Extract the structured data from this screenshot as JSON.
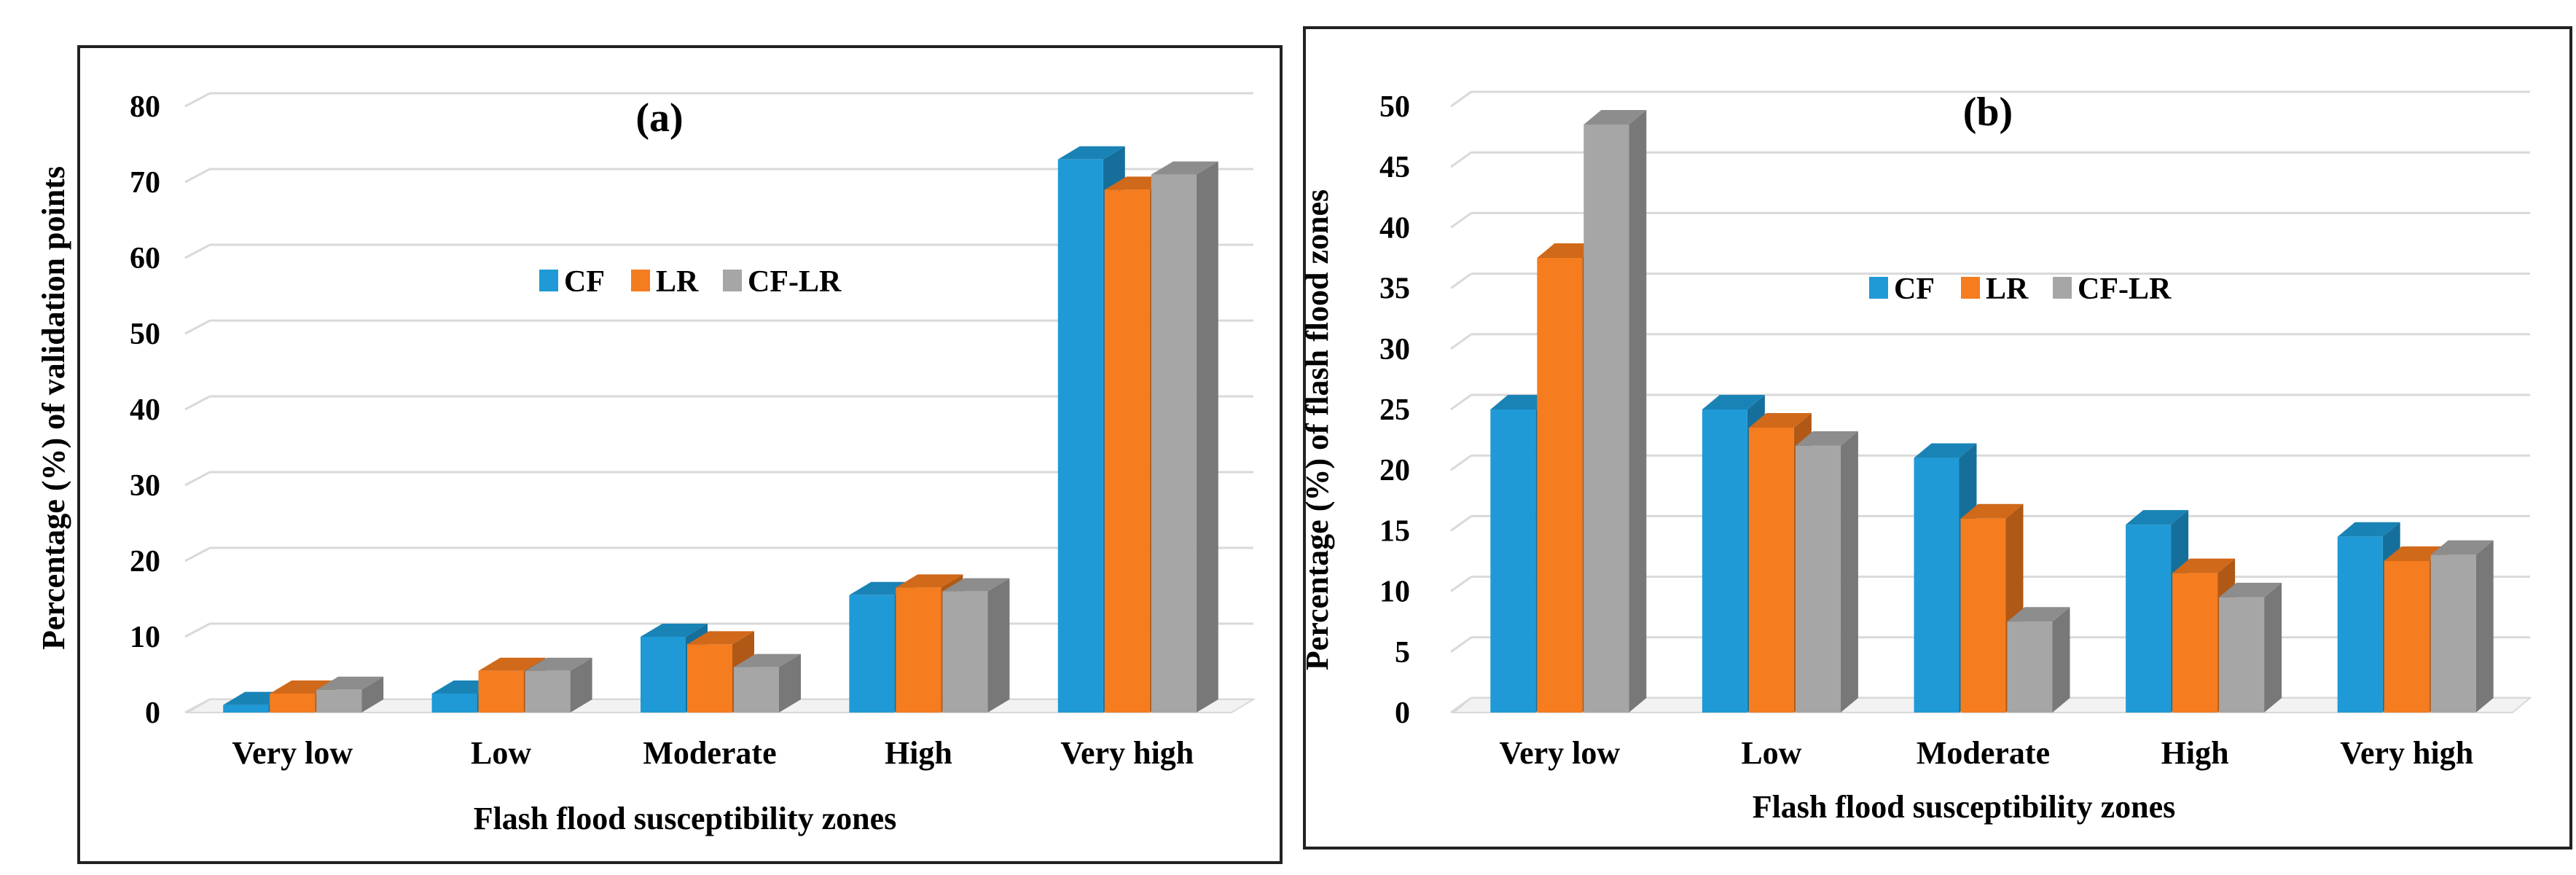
{
  "chart_data": [
    {
      "type": "bar",
      "panel_label": "(a)",
      "title": "(a)",
      "categories": [
        "Very low",
        "Low",
        "Moderate",
        "High",
        "Very high"
      ],
      "series": [
        {
          "name": "CF",
          "values": [
            1,
            2.5,
            10,
            15.5,
            73
          ]
        },
        {
          "name": "LR",
          "values": [
            2.5,
            5.5,
            9,
            16.5,
            69
          ]
        },
        {
          "name": "CF-LR",
          "values": [
            3,
            5.5,
            6,
            16,
            71
          ]
        }
      ],
      "xlabel": "Flash flood susceptibility zones",
      "ylabel": "Percentage (%) of validation points",
      "ylim": [
        0,
        80
      ],
      "yticks": [
        "0",
        "10",
        "20",
        "30",
        "40",
        "50",
        "60",
        "70",
        "80"
      ],
      "grid": true,
      "legend": "center-right"
    },
    {
      "type": "bar",
      "panel_label": "(b)",
      "title": "(b)",
      "categories": [
        "Very low",
        "Low",
        "Moderate",
        "High",
        "Very high"
      ],
      "series": [
        {
          "name": "CF",
          "values": [
            25,
            25,
            21,
            15.5,
            14.5
          ]
        },
        {
          "name": "LR",
          "values": [
            37.5,
            23.5,
            16,
            11.5,
            12.5
          ]
        },
        {
          "name": "CF-LR",
          "values": [
            48.5,
            22,
            7.5,
            9.5,
            13
          ]
        }
      ],
      "xlabel": "Flash flood susceptibility zones",
      "ylabel": "Percentage (%) of flash flood zones",
      "ylim": [
        0,
        50
      ],
      "yticks": [
        "0",
        "5",
        "10",
        "15",
        "20",
        "25",
        "30",
        "35",
        "40",
        "45",
        "50"
      ],
      "grid": true,
      "legend": "center-right"
    }
  ],
  "colors": {
    "CF": "#1f9ad6",
    "LR": "#f57c1f",
    "CF-LR": "#a6a6a6"
  }
}
